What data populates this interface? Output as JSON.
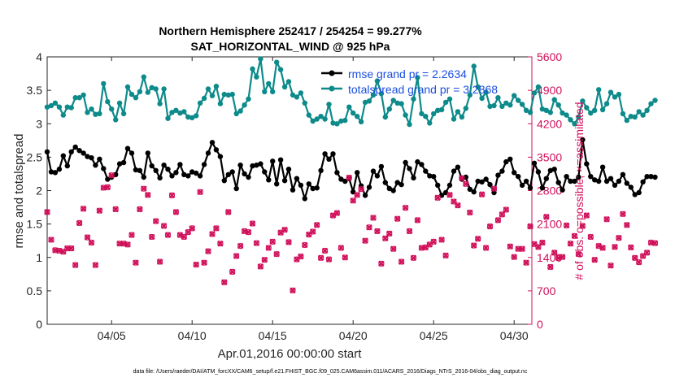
{
  "chart_data": {
    "type": "line",
    "title_line1": "Northern Hemisphere 252417 / 254254 = 99.277%",
    "title_line2": "SAT_HORIZONTAL_WIND @ 925 hPa",
    "xlabel": "Apr.01,2016 00:00:00 start",
    "ylabel": "rmse and totalspread",
    "ylabel_right": "# of obs: o=possible; ×=assimilated",
    "footnote": "data file: /Users/raeder/DAI/ATM_forcXX/CAM6_setup/f.e21.FHIST_BGC.f09_025.CAM6assim.011/ACARS_2016/Diags_NTrS_2016-04/obs_diag_output.nc",
    "x_range_days": [
      1.0,
      31.1
    ],
    "x_tick_days": [
      5,
      10,
      15,
      20,
      25,
      30
    ],
    "x_tick_labels": [
      "04/05",
      "04/10",
      "04/15",
      "04/20",
      "04/25",
      "04/30"
    ],
    "ylim": [
      0,
      4
    ],
    "y_ticks": [
      "0",
      "0.5",
      "1",
      "1.5",
      "2",
      "2.5",
      "3",
      "3.5",
      "4"
    ],
    "ylim_right": [
      0,
      5600
    ],
    "y_ticks_right": [
      "0",
      "700",
      "1400",
      "2100",
      "2800",
      "3500",
      "4200",
      "4900",
      "5600"
    ],
    "x_start_day": 1.0,
    "x_step_days": 0.25,
    "legend": {
      "position": "top-right",
      "entries": [
        "rmse grand pr = 2.2634",
        "totalspread grand pr = 3.2868"
      ]
    },
    "series": [
      {
        "name": "rmse",
        "color": "#000000",
        "marker": "filled-circle",
        "axis": "left",
        "values": [
          2.58,
          2.28,
          2.27,
          2.32,
          2.52,
          2.37,
          2.58,
          2.65,
          2.6,
          2.56,
          2.51,
          2.49,
          2.38,
          2.47,
          2.33,
          2.17,
          2.2,
          2.24,
          2.4,
          2.42,
          2.63,
          2.56,
          2.31,
          2.3,
          2.2,
          2.56,
          2.37,
          2.3,
          2.19,
          2.38,
          2.32,
          2.22,
          2.27,
          2.39,
          2.24,
          2.22,
          2.28,
          2.26,
          2.22,
          2.39,
          2.56,
          2.72,
          2.61,
          2.51,
          2.15,
          2.24,
          2.28,
          2.03,
          2.38,
          2.25,
          2.2,
          2.37,
          2.38,
          2.4,
          2.28,
          2.16,
          2.44,
          2.1,
          2.46,
          2.15,
          2.32,
          2.01,
          2.18,
          2.08,
          1.88,
          2.1,
          2.03,
          2.04,
          2.3,
          2.55,
          2.47,
          2.55,
          2.27,
          2.17,
          2.14,
          2.18,
          1.98,
          2.27,
          2.07,
          1.93,
          2.05,
          2.29,
          2.22,
          2.36,
          2.12,
          2.03,
          2.0,
          2.12,
          2.09,
          2.42,
          2.33,
          2.19,
          2.43,
          2.39,
          2.29,
          2.22,
          2.21,
          2.08,
          1.93,
          1.97,
          2.08,
          2.29,
          2.35,
          2.17,
          2.2,
          2.02,
          1.98,
          2.14,
          2.13,
          2.17,
          2.09,
          1.97,
          2.23,
          2.29,
          2.43,
          2.47,
          2.27,
          2.21,
          2.08,
          2.14,
          2.04,
          2.41,
          2.28,
          2.04,
          2.18,
          2.3,
          2.32,
          2.12,
          2.01,
          2.21,
          2.14,
          2.14,
          2.2,
          2.76,
          2.4,
          2.21,
          2.16,
          2.14,
          2.35,
          2.14,
          2.18,
          2.08,
          2.14,
          2.24,
          2.11,
          2.05,
          1.94,
          1.97,
          2.13,
          2.21,
          2.21,
          2.2
        ]
      },
      {
        "name": "totalspread",
        "color": "#0d8a8a",
        "marker": "filled-circle",
        "axis": "left",
        "values": [
          3.25,
          3.27,
          3.31,
          3.25,
          3.13,
          3.25,
          3.24,
          3.39,
          3.39,
          3.43,
          3.17,
          3.22,
          3.14,
          3.15,
          3.6,
          3.33,
          3.22,
          3.06,
          3.31,
          3.15,
          3.55,
          3.44,
          3.39,
          3.48,
          3.7,
          3.47,
          3.54,
          3.52,
          3.3,
          3.52,
          3.08,
          3.17,
          3.2,
          3.16,
          3.18,
          3.1,
          3.09,
          3.12,
          3.31,
          3.38,
          3.52,
          3.42,
          3.56,
          3.3,
          3.44,
          3.43,
          3.44,
          3.15,
          3.19,
          3.28,
          3.37,
          3.82,
          3.7,
          3.97,
          3.48,
          3.6,
          3.48,
          3.92,
          3.81,
          3.55,
          3.63,
          3.43,
          3.4,
          3.46,
          3.31,
          3.13,
          3.04,
          3.07,
          3.11,
          3.07,
          3.29,
          3.01,
          3.0,
          3.04,
          3.05,
          3.25,
          3.16,
          3.11,
          3.03,
          3.32,
          3.34,
          3.43,
          3.64,
          3.45,
          3.1,
          3.22,
          3.35,
          3.31,
          3.3,
          3.13,
          2.99,
          3.37,
          3.69,
          3.15,
          3.11,
          3.01,
          3.15,
          3.2,
          3.21,
          3.32,
          3.37,
          3.07,
          3.18,
          3.1,
          3.23,
          3.43,
          3.86,
          3.55,
          3.38,
          3.47,
          3.26,
          3.27,
          3.39,
          3.26,
          3.31,
          3.28,
          3.42,
          3.35,
          3.29,
          3.2,
          3.17,
          3.46,
          3.55,
          3.22,
          3.2,
          3.17,
          3.36,
          3.28,
          3.16,
          3.13,
          3.06,
          3.0,
          3.1,
          3.34,
          3.24,
          3.16,
          3.2,
          3.51,
          3.21,
          3.3,
          3.47,
          3.4,
          3.44,
          3.15,
          3.05,
          3.11,
          3.1,
          3.18,
          3.13,
          3.2,
          3.3,
          3.35
        ]
      },
      {
        "name": "obs_possible",
        "color": "#d0105a",
        "marker": "circle",
        "axis": "right",
        "values": [
          2350,
          1770,
          1550,
          1540,
          1520,
          1590,
          1590,
          1240,
          2120,
          2420,
          1820,
          1710,
          1240,
          2380,
          2860,
          2870,
          3120,
          2410,
          1690,
          1690,
          1670,
          1870,
          1290,
          2410,
          2840,
          2710,
          1830,
          2160,
          1310,
          2060,
          1870,
          2700,
          2350,
          1870,
          1830,
          1930,
          2010,
          1250,
          2770,
          1290,
          1530,
          1890,
          2010,
          1690,
          880,
          2350,
          1100,
          1430,
          1640,
          1950,
          1930,
          2110,
          1700,
          1210,
          1350,
          1600,
          1730,
          1470,
          1920,
          1980,
          1720,
          710,
          1360,
          1420,
          1660,
          1880,
          1940,
          2080,
          1390,
          1540,
          1360,
          2280,
          2330,
          1600,
          1400,
          3070,
          2590,
          2710,
          2830,
          1750,
          2030,
          2230,
          1950,
          1270,
          1800,
          1900,
          1580,
          2210,
          1310,
          2440,
          1950,
          1390,
          2180,
          1600,
          1610,
          1670,
          1730,
          2650,
          1770,
          1440,
          2710,
          2570,
          2490,
          3060,
          2940,
          2340,
          1650,
          1790,
          2720,
          1600,
          2050,
          2840,
          2180,
          2300,
          2400,
          1630,
          1410,
          1580,
          1580,
          1290,
          2050,
          1680,
          1620,
          1710,
          2250,
          1200,
          1500,
          1390,
          1410,
          2070,
          1690,
          1850,
          1470,
          2060,
          2280,
          1830,
          1350,
          1640,
          1600,
          2200,
          1230,
          1620,
          1810,
          2310,
          2080,
          1610,
          1390,
          1300,
          1430,
          1500,
          1710,
          1700
        ]
      },
      {
        "name": "obs_assimilated",
        "color": "#d0105a",
        "marker": "cross",
        "axis": "right",
        "values": [
          2350,
          1770,
          1550,
          1540,
          1520,
          1590,
          1590,
          1240,
          2120,
          2420,
          1820,
          1710,
          1240,
          2380,
          2860,
          2870,
          3120,
          2410,
          1690,
          1690,
          1670,
          1870,
          1290,
          2410,
          2840,
          2710,
          1830,
          2160,
          1310,
          2060,
          1870,
          2700,
          2350,
          1870,
          1830,
          1930,
          2010,
          1250,
          2770,
          1290,
          1530,
          1890,
          2010,
          1690,
          880,
          2350,
          1100,
          1430,
          1640,
          1950,
          1930,
          2110,
          1700,
          1210,
          1350,
          1600,
          1730,
          1470,
          1920,
          1980,
          1720,
          710,
          1360,
          1420,
          1660,
          1880,
          1940,
          2080,
          1390,
          1540,
          1360,
          2280,
          2330,
          1600,
          1400,
          3070,
          2590,
          2710,
          2830,
          1750,
          2030,
          2230,
          1950,
          1270,
          1800,
          1900,
          1580,
          2210,
          1310,
          2440,
          1950,
          1390,
          2180,
          1600,
          1610,
          1670,
          1730,
          2650,
          1770,
          1440,
          2710,
          2570,
          2490,
          3060,
          2940,
          2340,
          1650,
          1790,
          2720,
          1600,
          2050,
          2840,
          2180,
          2300,
          2400,
          1630,
          1410,
          1580,
          1580,
          1290,
          2050,
          1680,
          1620,
          1710,
          2250,
          1200,
          1500,
          1390,
          1410,
          2070,
          1690,
          1850,
          1470,
          2060,
          2280,
          1830,
          1350,
          1640,
          1600,
          2200,
          1230,
          1620,
          1810,
          2310,
          2080,
          1610,
          1390,
          1300,
          1430,
          1500,
          1710,
          1700
        ]
      }
    ]
  }
}
